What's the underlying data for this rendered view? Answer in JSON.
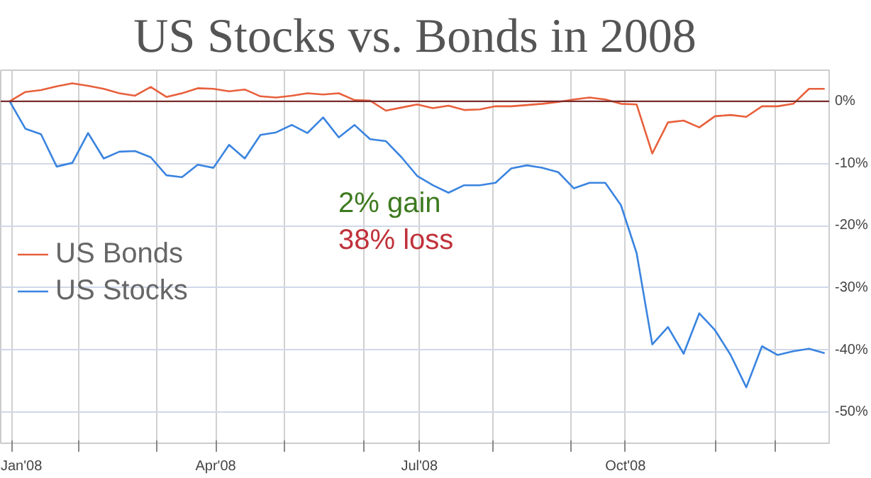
{
  "chart_data": {
    "type": "line",
    "title": "US Stocks vs. Bonds in 2008",
    "x": [
      "2007-12-31",
      "2008-01-07",
      "2008-01-14",
      "2008-01-21",
      "2008-01-28",
      "2008-02-04",
      "2008-02-11",
      "2008-02-18",
      "2008-02-25",
      "2008-03-03",
      "2008-03-10",
      "2008-03-17",
      "2008-03-24",
      "2008-03-31",
      "2008-04-07",
      "2008-04-14",
      "2008-04-21",
      "2008-04-28",
      "2008-05-05",
      "2008-05-12",
      "2008-05-19",
      "2008-05-26",
      "2008-06-02",
      "2008-06-09",
      "2008-06-16",
      "2008-06-23",
      "2008-06-30",
      "2008-07-07",
      "2008-07-14",
      "2008-07-21",
      "2008-07-28",
      "2008-08-04",
      "2008-08-11",
      "2008-08-18",
      "2008-08-25",
      "2008-09-01",
      "2008-09-08",
      "2008-09-15",
      "2008-09-22",
      "2008-09-29",
      "2008-10-06",
      "2008-10-13",
      "2008-10-20",
      "2008-10-27",
      "2008-11-03",
      "2008-11-10",
      "2008-11-17",
      "2008-11-24",
      "2008-12-01",
      "2008-12-08",
      "2008-12-15",
      "2008-12-22",
      "2008-12-29"
    ],
    "series": [
      {
        "name": "US Bonds",
        "color": "#e8603c",
        "values": [
          0,
          1.5,
          1.8,
          2.4,
          2.9,
          2.5,
          2,
          1.3,
          0.9,
          2.3,
          0.7,
          1.3,
          2.1,
          2,
          1.6,
          1.9,
          0.8,
          0.6,
          0.9,
          1.3,
          1.1,
          1.3,
          0.2,
          0.1,
          -1.5,
          -1,
          -0.5,
          -1.1,
          -0.7,
          -1.4,
          -1.3,
          -0.8,
          -0.8,
          -0.6,
          -0.4,
          -0.1,
          0.3,
          0.6,
          0.3,
          -0.4,
          -0.5,
          -8.4,
          -3.4,
          -3.1,
          -4.2,
          -2.4,
          -2.2,
          -2.5,
          -0.8,
          -0.8,
          -0.4,
          2,
          2
        ]
      },
      {
        "name": "US Stocks",
        "color": "#3a84e0",
        "values": [
          0,
          -4.4,
          -5.3,
          -10.5,
          -9.9,
          -5.1,
          -9.2,
          -8.1,
          -8,
          -9,
          -11.9,
          -12.2,
          -10.2,
          -10.7,
          -7,
          -9.2,
          -5.4,
          -5,
          -3.8,
          -5.1,
          -2.6,
          -5.8,
          -3.8,
          -6.1,
          -6.4,
          -9,
          -12,
          -13.5,
          -14.7,
          -13.5,
          -13.5,
          -13.1,
          -10.8,
          -10.3,
          -10.7,
          -11.4,
          -14,
          -13.1,
          -13.1,
          -16.7,
          -24.4,
          -39.1,
          -36.3,
          -40.6,
          -34.1,
          -36.8,
          -40.8,
          -46,
          -39.4,
          -40.8,
          -40.2,
          -39.8,
          -40.5
        ]
      }
    ],
    "xlim": [
      "2007-12-27",
      "2008-12-31"
    ],
    "xticks": [
      {
        "value": "2008-01-01",
        "label": "Jan'08"
      },
      {
        "value": "2008-01-31",
        "label": null
      },
      {
        "value": "2008-03-06",
        "label": null
      },
      {
        "value": "2008-04-01",
        "label": "Apr'08"
      },
      {
        "value": "2008-05-02",
        "label": null
      },
      {
        "value": "2008-06-06",
        "label": null
      },
      {
        "value": "2008-07-01",
        "label": "Jul'08"
      },
      {
        "value": "2008-08-03",
        "label": null
      },
      {
        "value": "2008-09-07",
        "label": null
      },
      {
        "value": "2008-10-01",
        "label": "Oct'08"
      },
      {
        "value": "2008-11-10",
        "label": null
      },
      {
        "value": "2008-12-07",
        "label": null
      }
    ],
    "ylim": [
      -55,
      5
    ],
    "yticks": [
      {
        "value": 0,
        "label": "0%"
      },
      {
        "value": -10,
        "label": "-10%"
      },
      {
        "value": -20,
        "label": "-20%"
      },
      {
        "value": -30,
        "label": "-30%"
      },
      {
        "value": -40,
        "label": "-40%"
      },
      {
        "value": -50,
        "label": "-50%"
      }
    ],
    "ref_lines": [
      {
        "axis": "y",
        "value": 0,
        "color": "#7a2e2e"
      }
    ],
    "annotations": [
      "2% gain",
      "38% loss"
    ],
    "grid": true,
    "legend": "left",
    "marker": "none",
    "line_style": "solid"
  }
}
